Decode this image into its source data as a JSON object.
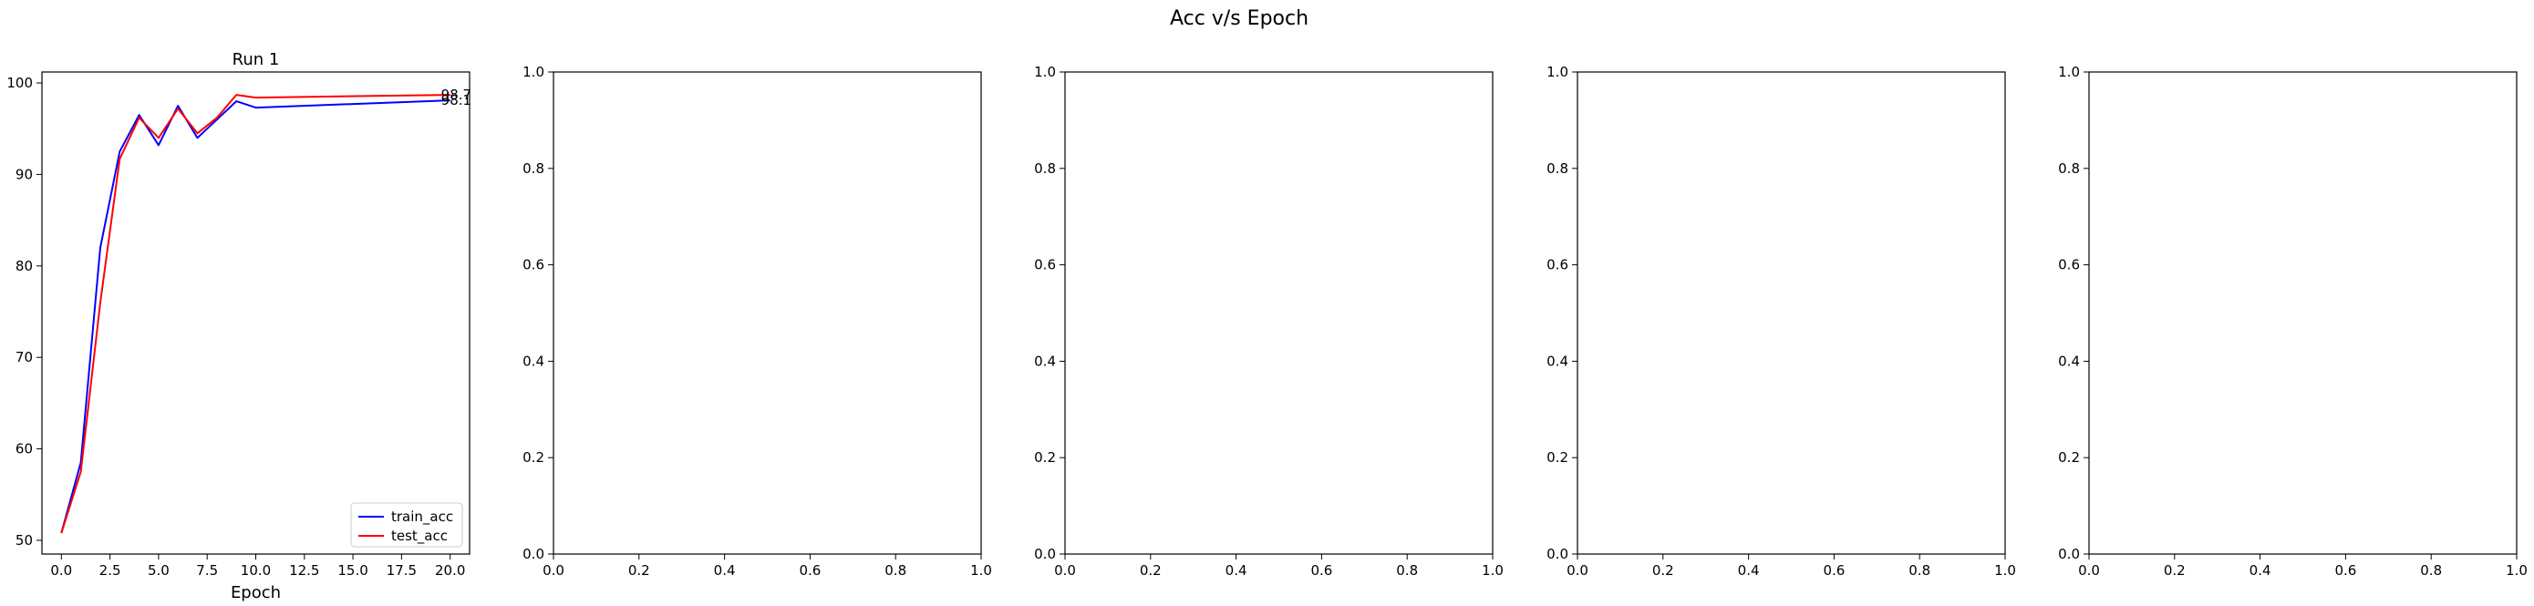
{
  "figure": {
    "suptitle": "Acc v/s Epoch"
  },
  "chart_data": [
    {
      "type": "line",
      "title": "Run 1",
      "xlabel": "Epoch",
      "ylabel": "",
      "xlim": [
        -1.0,
        21.0
      ],
      "ylim": [
        48.5,
        101.2
      ],
      "xticks": [
        0.0,
        2.5,
        5.0,
        7.5,
        10.0,
        12.5,
        15.0,
        17.5,
        20.0
      ],
      "xtick_labels": [
        "0.0",
        "2.5",
        "5.0",
        "7.5",
        "10.0",
        "12.5",
        "15.0",
        "17.5",
        "20.0"
      ],
      "yticks": [
        50,
        60,
        70,
        80,
        90,
        100
      ],
      "ytick_labels": [
        "50",
        "60",
        "70",
        "80",
        "90",
        "100"
      ],
      "legend": "lower-right",
      "grid": false,
      "series": [
        {
          "name": "train_acc",
          "color": "#0000ff",
          "x": [
            0,
            1,
            2,
            3,
            4,
            5,
            6,
            7,
            8,
            9,
            10,
            20
          ],
          "y": [
            50.8,
            58.5,
            82.0,
            92.5,
            96.5,
            93.2,
            97.5,
            94.0,
            96.0,
            98.0,
            97.3,
            98.1
          ],
          "end_label": "98.1"
        },
        {
          "name": "test_acc",
          "color": "#ff0000",
          "x": [
            0,
            1,
            2,
            3,
            4,
            5,
            6,
            7,
            8,
            9,
            10,
            20
          ],
          "y": [
            50.8,
            57.5,
            76.0,
            91.7,
            96.2,
            94.0,
            97.2,
            94.5,
            96.2,
            98.7,
            98.4,
            98.7
          ],
          "end_label": "98.7"
        }
      ]
    },
    {
      "type": "line",
      "title": "",
      "xlabel": "",
      "ylabel": "",
      "xlim": [
        0,
        1
      ],
      "ylim": [
        0,
        1
      ],
      "xticks": [
        0.0,
        0.2,
        0.4,
        0.6,
        0.8,
        1.0
      ],
      "xtick_labels": [
        "0.0",
        "0.2",
        "0.4",
        "0.6",
        "0.8",
        "1.0"
      ],
      "yticks": [
        0.0,
        0.2,
        0.4,
        0.6,
        0.8,
        1.0
      ],
      "ytick_labels": [
        "0.0",
        "0.2",
        "0.4",
        "0.6",
        "0.8",
        "1.0"
      ],
      "series": []
    },
    {
      "type": "line",
      "title": "",
      "xlabel": "",
      "ylabel": "",
      "xlim": [
        0,
        1
      ],
      "ylim": [
        0,
        1
      ],
      "xticks": [
        0.0,
        0.2,
        0.4,
        0.6,
        0.8,
        1.0
      ],
      "xtick_labels": [
        "0.0",
        "0.2",
        "0.4",
        "0.6",
        "0.8",
        "1.0"
      ],
      "yticks": [
        0.0,
        0.2,
        0.4,
        0.6,
        0.8,
        1.0
      ],
      "ytick_labels": [
        "0.0",
        "0.2",
        "0.4",
        "0.6",
        "0.8",
        "1.0"
      ],
      "series": []
    },
    {
      "type": "line",
      "title": "",
      "xlabel": "",
      "ylabel": "",
      "xlim": [
        0,
        1
      ],
      "ylim": [
        0,
        1
      ],
      "xticks": [
        0.0,
        0.2,
        0.4,
        0.6,
        0.8,
        1.0
      ],
      "xtick_labels": [
        "0.0",
        "0.2",
        "0.4",
        "0.6",
        "0.8",
        "1.0"
      ],
      "yticks": [
        0.0,
        0.2,
        0.4,
        0.6,
        0.8,
        1.0
      ],
      "ytick_labels": [
        "0.0",
        "0.2",
        "0.4",
        "0.6",
        "0.8",
        "1.0"
      ],
      "series": []
    },
    {
      "type": "line",
      "title": "",
      "xlabel": "",
      "ylabel": "",
      "xlim": [
        0,
        1
      ],
      "ylim": [
        0,
        1
      ],
      "xticks": [
        0.0,
        0.2,
        0.4,
        0.6,
        0.8,
        1.0
      ],
      "xtick_labels": [
        "0.0",
        "0.2",
        "0.4",
        "0.6",
        "0.8",
        "1.0"
      ],
      "yticks": [
        0.0,
        0.2,
        0.4,
        0.6,
        0.8,
        1.0
      ],
      "ytick_labels": [
        "0.0",
        "0.2",
        "0.4",
        "0.6",
        "0.8",
        "1.0"
      ],
      "series": []
    }
  ]
}
